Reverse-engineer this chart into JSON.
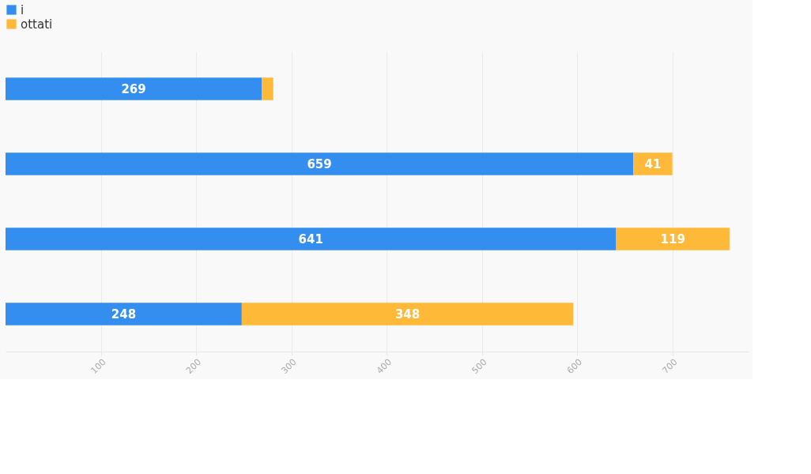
{
  "chart_data": {
    "type": "bar",
    "orientation": "horizontal",
    "stacked": true,
    "categories": [
      null,
      null,
      null,
      null
    ],
    "series": [
      {
        "name": "i",
        "color": "#338ef0",
        "values": [
          269,
          659,
          641,
          248
        ],
        "value_labels": [
          "269",
          "659",
          "641",
          "248"
        ]
      },
      {
        "name": "ottati",
        "color": "#ffb938",
        "values": [
          12,
          41,
          119,
          348
        ],
        "value_labels": [
          null,
          "41",
          "119",
          "348"
        ]
      }
    ],
    "xlim": [
      0,
      780
    ],
    "xticks": [
      100,
      200,
      300,
      400,
      500,
      600,
      700
    ],
    "grid": "x",
    "legend": "top left"
  }
}
